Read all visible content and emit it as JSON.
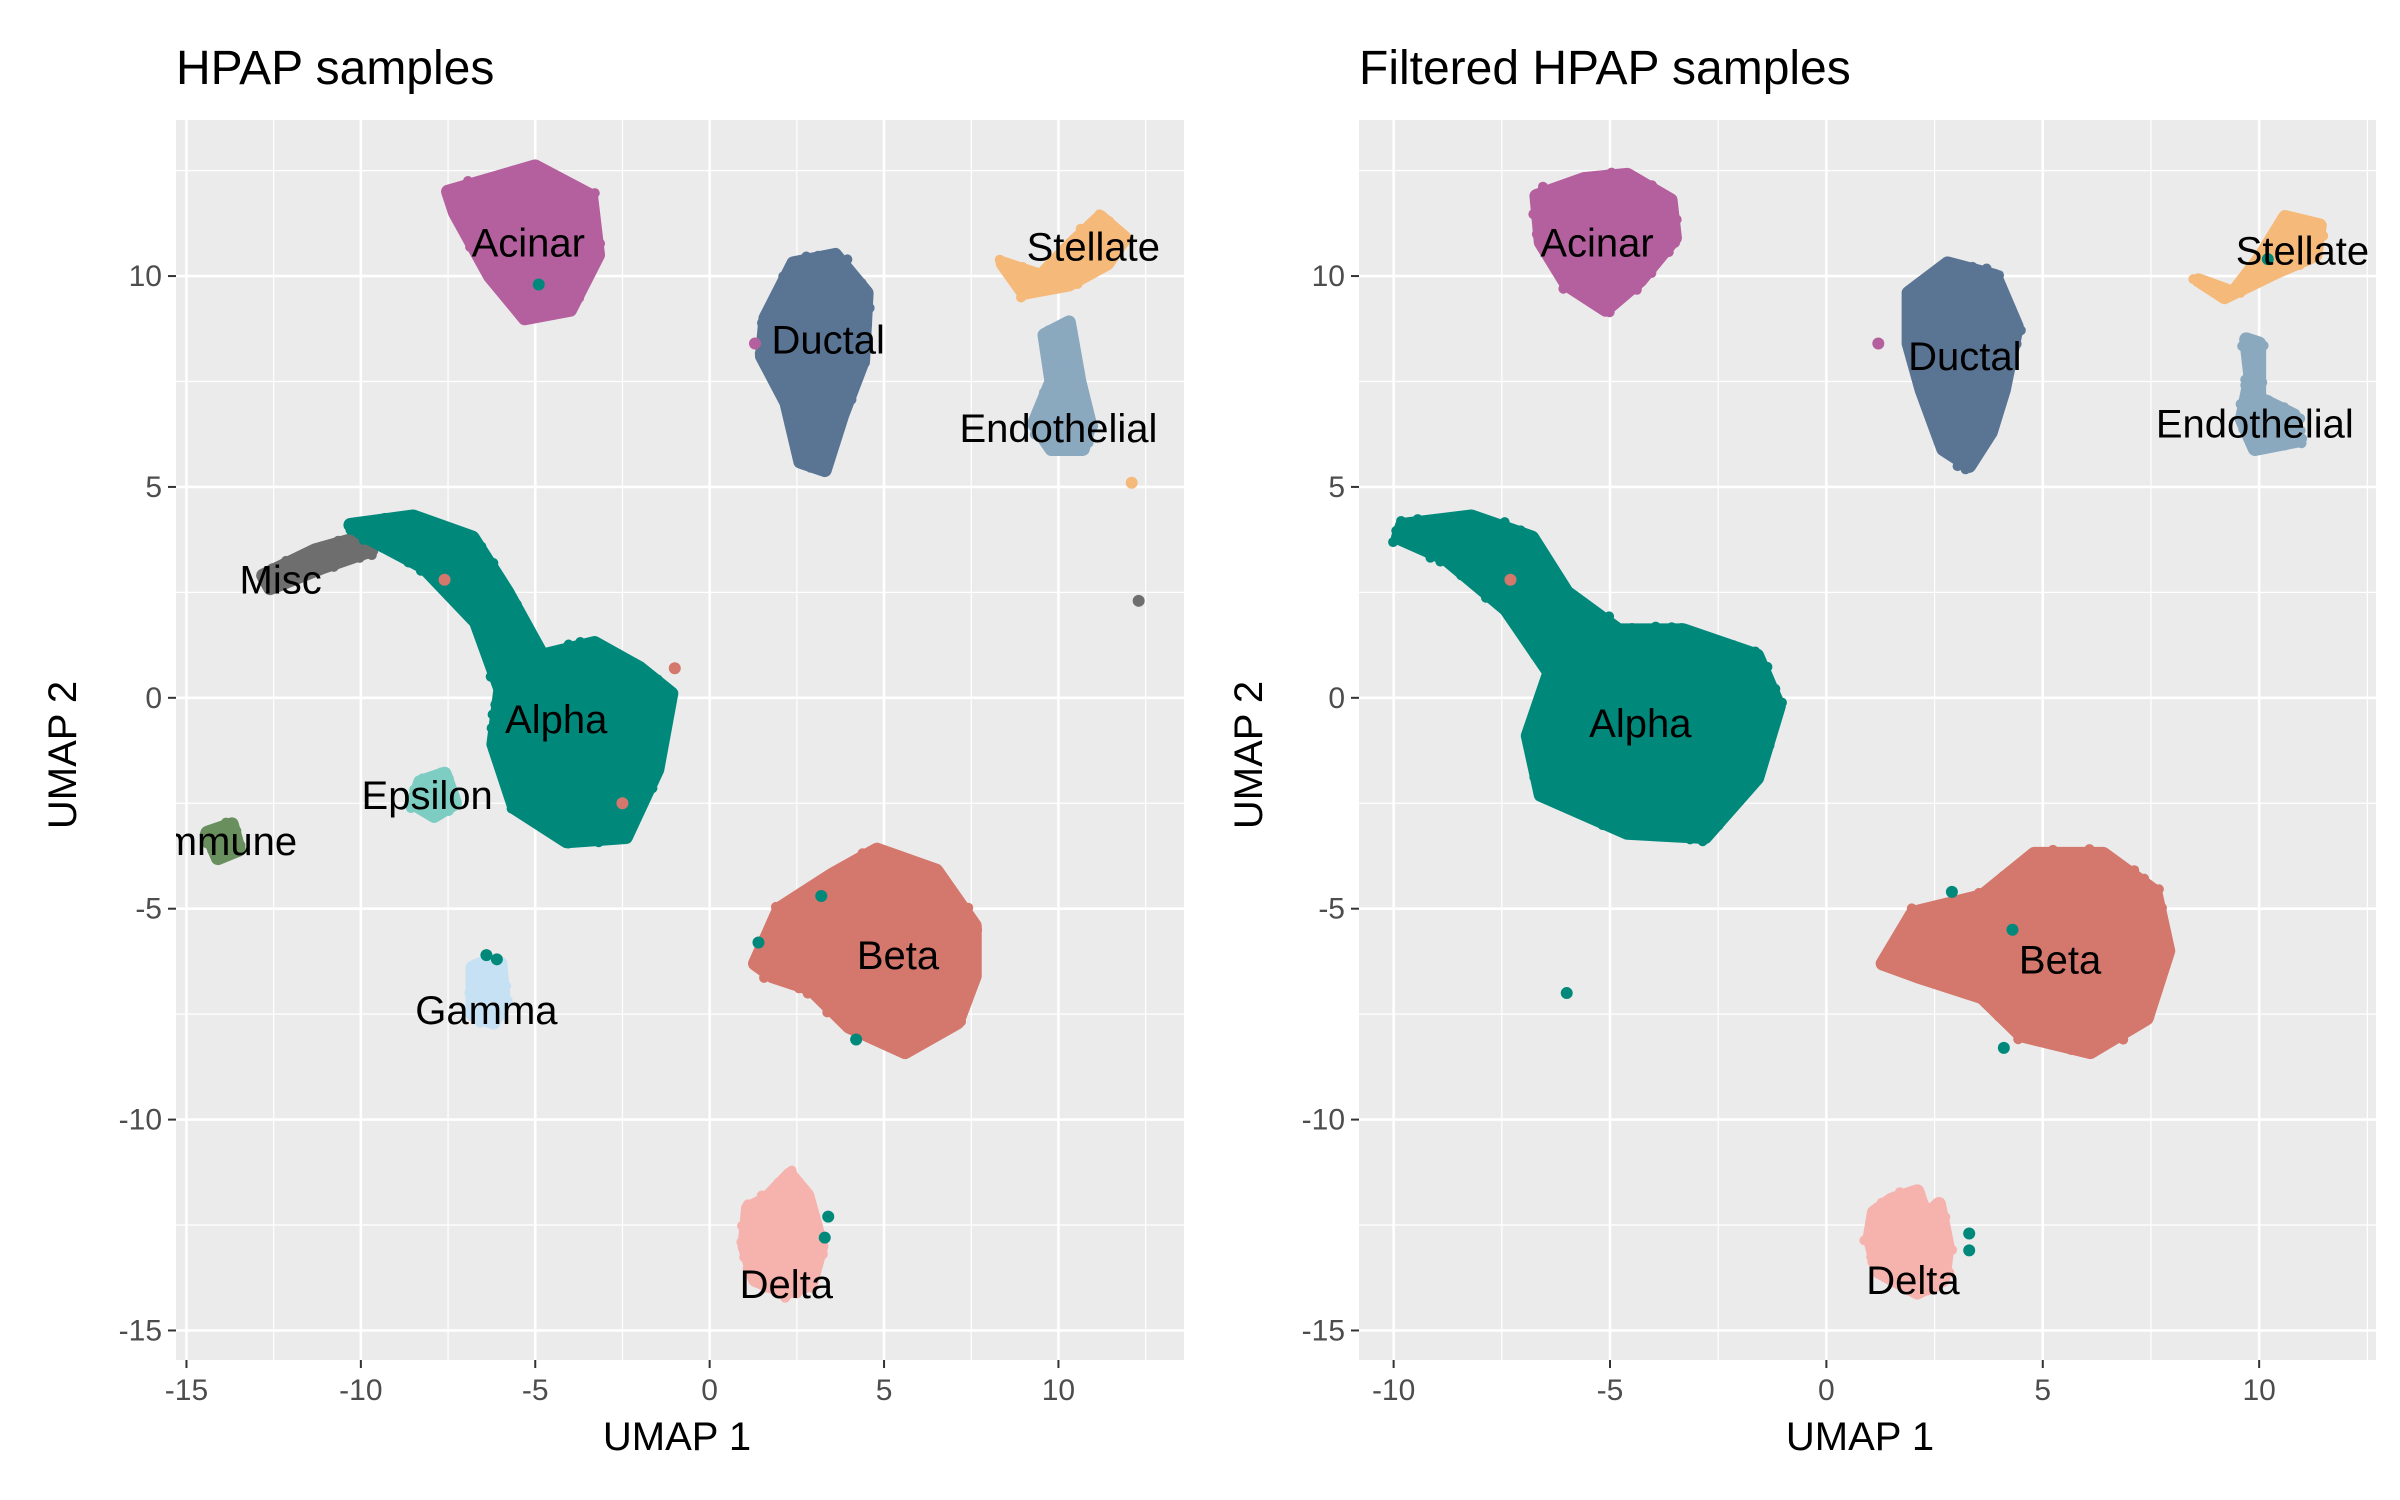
{
  "figure": {
    "background": "#ffffff",
    "panel_background": "#ebebeb",
    "grid_color": "#ffffff"
  },
  "chart_data": [
    {
      "type": "scatter",
      "title": "HPAP samples",
      "xlabel": "UMAP 1",
      "ylabel": "UMAP 2",
      "xlim": [
        -15.3,
        13.6
      ],
      "ylim": [
        -15.7,
        13.7
      ],
      "x_ticks": [
        -15,
        -10,
        -5,
        0,
        5,
        10
      ],
      "x_tick_labels": [
        "-15",
        "-10",
        "-5",
        "0",
        "5",
        "10"
      ],
      "y_ticks": [
        -15,
        -10,
        -5,
        0,
        5,
        10
      ],
      "y_tick_labels": [
        "-15",
        "-10",
        "-5",
        "0",
        "5",
        "10"
      ],
      "grid": true,
      "legend": "none",
      "clusters": [
        {
          "name": "Acinar",
          "color": "#b5609e",
          "label_pos": [
            -5.2,
            10.8
          ],
          "shape": [
            [
              -7.5,
              12.0
            ],
            [
              -5.0,
              12.6
            ],
            [
              -3.4,
              11.9
            ],
            [
              -3.2,
              10.5
            ],
            [
              -4.0,
              9.2
            ],
            [
              -5.3,
              9.0
            ],
            [
              -6.3,
              10.0
            ],
            [
              -7.3,
              11.5
            ]
          ]
        },
        {
          "name": "Ductal",
          "color": "#5a7593",
          "label_pos": [
            3.4,
            8.5
          ],
          "shape": [
            [
              1.6,
              9.0
            ],
            [
              2.4,
              10.3
            ],
            [
              3.6,
              10.5
            ],
            [
              4.5,
              9.6
            ],
            [
              4.4,
              8.0
            ],
            [
              3.8,
              6.7
            ],
            [
              3.3,
              5.4
            ],
            [
              2.6,
              5.6
            ],
            [
              2.2,
              7.0
            ],
            [
              1.5,
              8.1
            ]
          ]
        },
        {
          "name": "Stellate",
          "color": "#f5b97a",
          "label_pos": [
            11.0,
            10.7
          ],
          "shape": [
            [
              8.4,
              10.3
            ],
            [
              9.5,
              10.0
            ],
            [
              10.3,
              10.7
            ],
            [
              11.2,
              11.4
            ],
            [
              11.9,
              10.9
            ],
            [
              11.4,
              10.3
            ],
            [
              10.3,
              9.8
            ],
            [
              9.0,
              9.6
            ]
          ]
        },
        {
          "name": "Endothelial",
          "color": "#8aa9bf",
          "label_pos": [
            10.0,
            6.4
          ],
          "shape": [
            [
              9.6,
              8.6
            ],
            [
              10.3,
              8.9
            ],
            [
              10.6,
              7.5
            ],
            [
              10.9,
              6.5
            ],
            [
              10.7,
              5.9
            ],
            [
              9.8,
              5.9
            ],
            [
              9.3,
              6.5
            ],
            [
              9.8,
              7.5
            ]
          ]
        },
        {
          "name": "Misc",
          "color": "#6e6e6e",
          "label_pos": [
            -12.3,
            2.8
          ],
          "shape": [
            [
              -12.8,
              2.9
            ],
            [
              -11.3,
              3.5
            ],
            [
              -10.0,
              3.8
            ],
            [
              -9.7,
              3.5
            ],
            [
              -11.1,
              3.1
            ],
            [
              -12.6,
              2.6
            ]
          ]
        },
        {
          "name": "Alpha",
          "color": "#00897b",
          "label_pos": [
            -4.4,
            -0.5
          ],
          "shape": [
            [
              -10.3,
              4.1
            ],
            [
              -8.5,
              4.3
            ],
            [
              -6.8,
              3.8
            ],
            [
              -5.8,
              2.5
            ],
            [
              -4.8,
              1.0
            ],
            [
              -3.3,
              1.3
            ],
            [
              -2.0,
              0.7
            ],
            [
              -1.1,
              0.1
            ],
            [
              -1.5,
              -1.7
            ],
            [
              -2.4,
              -3.3
            ],
            [
              -4.1,
              -3.4
            ],
            [
              -5.6,
              -2.6
            ],
            [
              -6.2,
              -1.1
            ],
            [
              -6.0,
              0.2
            ],
            [
              -6.7,
              1.8
            ],
            [
              -8.2,
              3.1
            ],
            [
              -9.8,
              3.8
            ]
          ]
        },
        {
          "name": "Epsilon",
          "color": "#7ecdc3",
          "label_pos": [
            -8.1,
            -2.3
          ],
          "shape": [
            [
              -8.3,
              -2.0
            ],
            [
              -7.6,
              -1.8
            ],
            [
              -7.3,
              -2.5
            ],
            [
              -7.9,
              -2.8
            ],
            [
              -8.5,
              -2.5
            ]
          ]
        },
        {
          "name": "Immune",
          "color": "#6a8f5e",
          "label_pos": [
            -13.9,
            -3.4
          ],
          "shape": [
            [
              -14.4,
              -3.2
            ],
            [
              -13.7,
              -3.0
            ],
            [
              -13.5,
              -3.6
            ],
            [
              -14.1,
              -3.8
            ]
          ]
        },
        {
          "name": "Gamma",
          "color": "#c6e1f3",
          "label_pos": [
            -6.4,
            -7.4
          ],
          "shape": [
            [
              -6.8,
              -6.4
            ],
            [
              -6.0,
              -6.3
            ],
            [
              -5.9,
              -7.2
            ],
            [
              -6.2,
              -7.7
            ],
            [
              -6.8,
              -7.5
            ]
          ]
        },
        {
          "name": "Beta",
          "color": "#d4776c",
          "label_pos": [
            5.4,
            -6.1
          ],
          "shape": [
            [
              1.3,
              -6.3
            ],
            [
              2.0,
              -5.0
            ],
            [
              3.5,
              -4.2
            ],
            [
              4.8,
              -3.6
            ],
            [
              6.5,
              -4.1
            ],
            [
              7.6,
              -5.4
            ],
            [
              7.6,
              -6.6
            ],
            [
              7.1,
              -7.7
            ],
            [
              5.6,
              -8.4
            ],
            [
              4.0,
              -7.8
            ],
            [
              2.9,
              -6.9
            ],
            [
              1.8,
              -6.6
            ]
          ]
        },
        {
          "name": "Delta",
          "color": "#f6b3ae",
          "label_pos": [
            2.2,
            -13.9
          ],
          "shape": [
            [
              1.1,
              -12.1
            ],
            [
              1.6,
              -11.9
            ],
            [
              2.3,
              -11.3
            ],
            [
              2.8,
              -11.8
            ],
            [
              3.2,
              -13.0
            ],
            [
              2.9,
              -13.9
            ],
            [
              2.2,
              -14.1
            ],
            [
              1.3,
              -13.8
            ],
            [
              1.0,
              -13.0
            ]
          ]
        }
      ],
      "outliers": [
        {
          "x": 12.1,
          "y": 5.1,
          "color": "#f5b97a"
        },
        {
          "x": 12.3,
          "y": 2.3,
          "color": "#6e6e6e"
        },
        {
          "x": -4.9,
          "y": 9.8,
          "color": "#00897b"
        },
        {
          "x": 1.3,
          "y": 8.4,
          "color": "#b5609e"
        },
        {
          "x": -7.6,
          "y": 2.8,
          "color": "#d4776c"
        },
        {
          "x": -1.0,
          "y": 0.7,
          "color": "#d4776c"
        },
        {
          "x": -2.5,
          "y": -2.5,
          "color": "#d4776c"
        },
        {
          "x": 1.4,
          "y": -5.8,
          "color": "#00897b"
        },
        {
          "x": 3.2,
          "y": -4.7,
          "color": "#00897b"
        },
        {
          "x": 4.2,
          "y": -8.1,
          "color": "#00897b"
        },
        {
          "x": 3.4,
          "y": -12.3,
          "color": "#00897b"
        },
        {
          "x": 3.3,
          "y": -12.8,
          "color": "#00897b"
        },
        {
          "x": -6.4,
          "y": -6.1,
          "color": "#00897b"
        },
        {
          "x": -6.1,
          "y": -6.2,
          "color": "#00897b"
        }
      ]
    },
    {
      "type": "scatter",
      "title": "Filtered HPAP samples",
      "xlabel": "UMAP 1",
      "ylabel": "UMAP 2",
      "xlim": [
        -10.8,
        12.7
      ],
      "ylim": [
        -15.7,
        13.7
      ],
      "x_ticks": [
        -10,
        -5,
        0,
        5,
        10
      ],
      "x_tick_labels": [
        "-10",
        "-5",
        "0",
        "5",
        "10"
      ],
      "y_ticks": [
        -15,
        -10,
        -5,
        0,
        5,
        10
      ],
      "y_tick_labels": [
        "-15",
        "-10",
        "-5",
        "0",
        "5",
        "10"
      ],
      "grid": true,
      "legend": "none",
      "clusters": [
        {
          "name": "Acinar",
          "color": "#b5609e",
          "label_pos": [
            -5.3,
            10.8
          ],
          "shape": [
            [
              -6.7,
              11.9
            ],
            [
              -5.6,
              12.3
            ],
            [
              -4.6,
              12.4
            ],
            [
              -3.6,
              11.8
            ],
            [
              -3.5,
              10.9
            ],
            [
              -4.3,
              9.9
            ],
            [
              -5.1,
              9.2
            ],
            [
              -6.0,
              9.8
            ],
            [
              -6.6,
              10.8
            ]
          ]
        },
        {
          "name": "Ductal",
          "color": "#5a7593",
          "label_pos": [
            3.2,
            8.1
          ],
          "shape": [
            [
              1.9,
              9.6
            ],
            [
              2.8,
              10.3
            ],
            [
              3.9,
              10.0
            ],
            [
              4.4,
              8.8
            ],
            [
              4.1,
              7.3
            ],
            [
              3.8,
              6.3
            ],
            [
              3.3,
              5.5
            ],
            [
              2.7,
              5.9
            ],
            [
              2.2,
              7.3
            ],
            [
              1.9,
              8.4
            ]
          ]
        },
        {
          "name": "Stellate",
          "color": "#f5b97a",
          "label_pos": [
            11.0,
            10.6
          ],
          "shape": [
            [
              8.6,
              9.9
            ],
            [
              9.4,
              9.6
            ],
            [
              10.0,
              10.4
            ],
            [
              10.6,
              11.4
            ],
            [
              11.4,
              11.2
            ],
            [
              11.3,
              10.5
            ],
            [
              10.4,
              10.1
            ],
            [
              9.2,
              9.5
            ]
          ]
        },
        {
          "name": "Endothelial",
          "color": "#8aa9bf",
          "label_pos": [
            9.9,
            6.5
          ],
          "shape": [
            [
              9.7,
              8.5
            ],
            [
              10.0,
              8.4
            ],
            [
              10.0,
              7.1
            ],
            [
              10.8,
              6.7
            ],
            [
              10.9,
              6.1
            ],
            [
              9.9,
              5.9
            ],
            [
              9.6,
              6.6
            ],
            [
              9.8,
              7.6
            ]
          ]
        },
        {
          "name": "Alpha",
          "color": "#00897b",
          "label_pos": [
            -4.3,
            -0.6
          ],
          "shape": [
            [
              -9.8,
              4.1
            ],
            [
              -8.2,
              4.3
            ],
            [
              -6.8,
              3.8
            ],
            [
              -6.0,
              2.5
            ],
            [
              -4.8,
              1.6
            ],
            [
              -3.3,
              1.6
            ],
            [
              -1.6,
              1.0
            ],
            [
              -1.1,
              -0.2
            ],
            [
              -1.6,
              -1.9
            ],
            [
              -2.8,
              -3.3
            ],
            [
              -4.6,
              -3.2
            ],
            [
              -6.6,
              -2.3
            ],
            [
              -6.9,
              -0.9
            ],
            [
              -6.4,
              0.6
            ],
            [
              -7.4,
              2.1
            ],
            [
              -8.8,
              3.3
            ],
            [
              -9.9,
              3.8
            ]
          ]
        },
        {
          "name": "Beta",
          "color": "#d4776c",
          "label_pos": [
            5.4,
            -6.2
          ],
          "shape": [
            [
              1.3,
              -6.3
            ],
            [
              2.0,
              -5.1
            ],
            [
              3.6,
              -4.7
            ],
            [
              4.8,
              -3.7
            ],
            [
              6.4,
              -3.7
            ],
            [
              7.6,
              -4.6
            ],
            [
              7.9,
              -6.0
            ],
            [
              7.4,
              -7.6
            ],
            [
              6.1,
              -8.4
            ],
            [
              4.5,
              -8.0
            ],
            [
              3.6,
              -7.1
            ],
            [
              2.1,
              -6.6
            ]
          ]
        },
        {
          "name": "Delta",
          "color": "#f6b3ae",
          "label_pos": [
            2.0,
            -13.8
          ],
          "shape": [
            [
              1.1,
              -12.2
            ],
            [
              1.5,
              -11.9
            ],
            [
              2.1,
              -11.7
            ],
            [
              2.3,
              -12.3
            ],
            [
              2.6,
              -12.0
            ],
            [
              2.8,
              -13.0
            ],
            [
              2.7,
              -13.8
            ],
            [
              2.1,
              -14.1
            ],
            [
              1.2,
              -13.6
            ],
            [
              1.0,
              -12.8
            ]
          ]
        }
      ],
      "outliers": [
        {
          "x": -6.0,
          "y": -7.0,
          "color": "#00897b"
        },
        {
          "x": -7.3,
          "y": 2.8,
          "color": "#d4776c"
        },
        {
          "x": 4.3,
          "y": -5.5,
          "color": "#00897b"
        },
        {
          "x": 2.9,
          "y": -4.6,
          "color": "#00897b"
        },
        {
          "x": 4.1,
          "y": -8.3,
          "color": "#00897b"
        },
        {
          "x": 3.3,
          "y": -12.7,
          "color": "#00897b"
        },
        {
          "x": 3.3,
          "y": -13.1,
          "color": "#00897b"
        },
        {
          "x": 10.2,
          "y": 10.4,
          "color": "#00897b"
        },
        {
          "x": 1.2,
          "y": 8.4,
          "color": "#b5609e"
        }
      ]
    }
  ]
}
